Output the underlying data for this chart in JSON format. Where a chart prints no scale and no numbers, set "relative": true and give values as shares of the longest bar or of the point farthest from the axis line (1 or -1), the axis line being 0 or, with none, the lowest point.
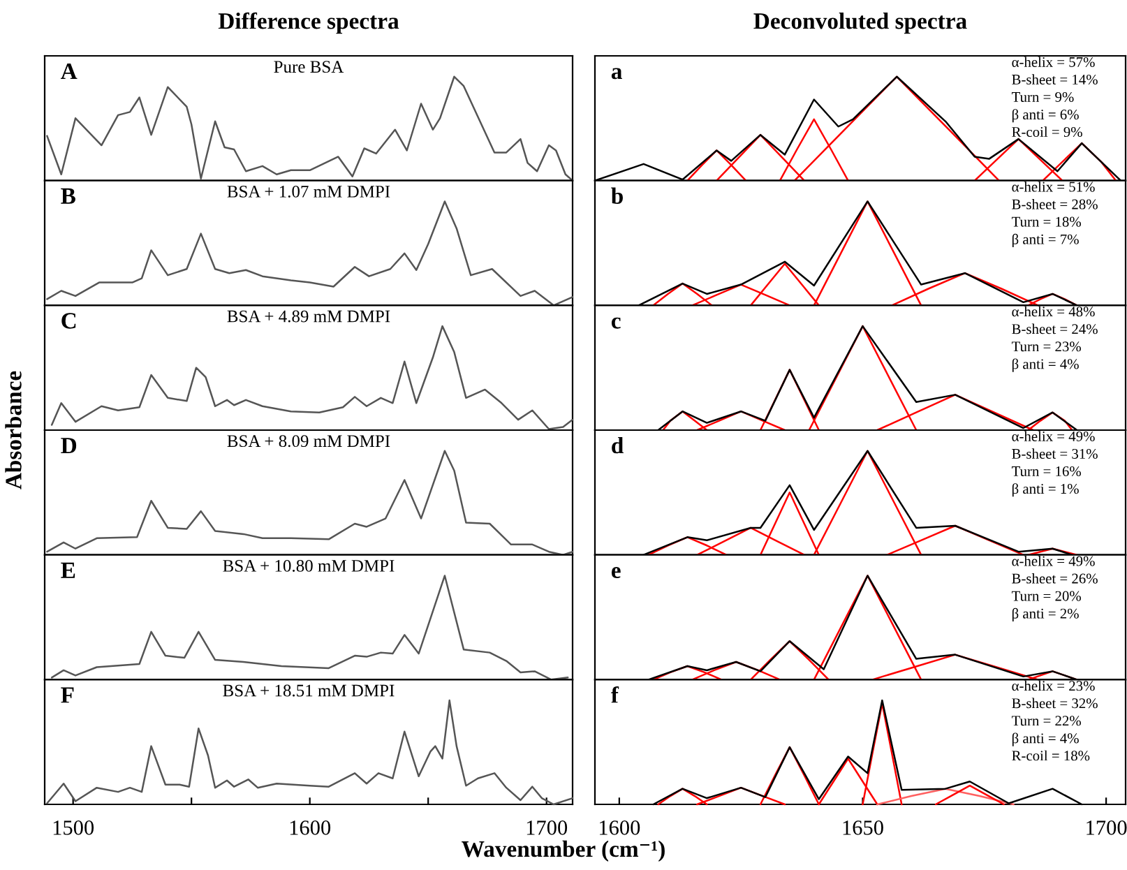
{
  "chart_data": [
    {
      "type": "line",
      "title": "Difference spectra",
      "subtitle": "Pure BSA",
      "annotations": [
        "A"
      ],
      "relative": true,
      "xlim": [
        1488,
        1711
      ],
      "tick_labels": false,
      "series": [
        {
          "color": "#555555",
          "x": [
            1489,
            1495,
            1501,
            1512,
            1519,
            1524,
            1528,
            1533,
            1540,
            1548,
            1550,
            1554,
            1560,
            1564,
            1568,
            1573,
            1580,
            1586,
            1592,
            1600,
            1612,
            1618,
            1623,
            1628,
            1636,
            1641,
            1647,
            1652,
            1655,
            1661,
            1665,
            1678,
            1683,
            1689,
            1692,
            1696,
            1701,
            1704,
            1708,
            1711
          ],
          "values": [
            0.43,
            0.06,
            0.6,
            0.34,
            0.63,
            0.66,
            0.8,
            0.44,
            0.9,
            0.71,
            0.54,
            0.02,
            0.57,
            0.32,
            0.3,
            0.09,
            0.14,
            0.06,
            0.1,
            0.1,
            0.23,
            0.04,
            0.31,
            0.26,
            0.49,
            0.29,
            0.74,
            0.49,
            0.6,
            1.0,
            0.91,
            0.27,
            0.27,
            0.4,
            0.17,
            0.09,
            0.34,
            0.29,
            0.06,
            0
          ]
        }
      ]
    },
    {
      "type": "line",
      "subtitle": "BSA + 1.07 mM DMPI",
      "annotations": [
        "B"
      ],
      "relative": true,
      "xlim": [
        1488,
        1711
      ],
      "tick_labels": false,
      "series": [
        {
          "color": "#555555",
          "x": [
            1489,
            1495,
            1501,
            1511,
            1525,
            1529,
            1533,
            1540,
            1548,
            1554,
            1560,
            1566,
            1573,
            1580,
            1592,
            1600,
            1610,
            1619,
            1625,
            1634,
            1640,
            1645,
            1650,
            1657,
            1662,
            1668,
            1677,
            1689,
            1695,
            1703,
            1711
          ],
          "values": [
            0.06,
            0.14,
            0.09,
            0.22,
            0.22,
            0.26,
            0.53,
            0.29,
            0.35,
            0.69,
            0.35,
            0.31,
            0.34,
            0.28,
            0.24,
            0.22,
            0.18,
            0.37,
            0.28,
            0.35,
            0.5,
            0.34,
            0.59,
            1.0,
            0.74,
            0.29,
            0.35,
            0.09,
            0.14,
            0,
            0.08
          ]
        }
      ]
    },
    {
      "type": "line",
      "subtitle": "BSA + 4.89 mM DMPI",
      "annotations": [
        "C"
      ],
      "relative": true,
      "xlim": [
        1488,
        1711
      ],
      "tick_labels": false,
      "series": [
        {
          "color": "#555555",
          "x": [
            1491,
            1495,
            1501,
            1512,
            1519,
            1528,
            1533,
            1540,
            1548,
            1552,
            1556,
            1560,
            1565,
            1568,
            1573,
            1580,
            1592,
            1604,
            1614,
            1619,
            1624,
            1630,
            1635,
            1640,
            1645,
            1652,
            1656,
            1661,
            1666,
            1674,
            1681,
            1688,
            1694,
            1701,
            1707,
            1711
          ],
          "values": [
            0.05,
            0.26,
            0.08,
            0.23,
            0.19,
            0.22,
            0.53,
            0.31,
            0.28,
            0.6,
            0.51,
            0.23,
            0.29,
            0.24,
            0.29,
            0.23,
            0.18,
            0.17,
            0.22,
            0.32,
            0.23,
            0.31,
            0.26,
            0.66,
            0.26,
            0.7,
            1.0,
            0.75,
            0.31,
            0.39,
            0.26,
            0.1,
            0.19,
            0.01,
            0.03,
            0.1
          ]
        }
      ]
    },
    {
      "type": "line",
      "subtitle": "BSA + 8.09 mM DMPI",
      "ylabel": "Absorbance",
      "annotations": [
        "D"
      ],
      "relative": true,
      "xlim": [
        1488,
        1711
      ],
      "tick_labels": false,
      "series": [
        {
          "color": "#555555",
          "x": [
            1489,
            1496,
            1501,
            1510,
            1527,
            1533,
            1540,
            1548,
            1554,
            1560,
            1572,
            1580,
            1592,
            1608,
            1619,
            1624,
            1632,
            1640,
            1647,
            1657,
            1661,
            1666,
            1676,
            1685,
            1694,
            1701,
            1707,
            1711
          ],
          "values": [
            0.03,
            0.12,
            0.06,
            0.16,
            0.17,
            0.52,
            0.26,
            0.25,
            0.42,
            0.23,
            0.2,
            0.16,
            0.16,
            0.15,
            0.3,
            0.27,
            0.35,
            0.72,
            0.35,
            1.0,
            0.81,
            0.31,
            0.3,
            0.1,
            0.1,
            0.03,
            0,
            0.03
          ]
        }
      ]
    },
    {
      "type": "line",
      "subtitle": "BSA + 10.80 mM DMPI",
      "annotations": [
        "E"
      ],
      "relative": true,
      "xlim": [
        1488,
        1711
      ],
      "tick_labels": false,
      "series": [
        {
          "color": "#555555",
          "x": [
            1491,
            1496,
            1501,
            1510,
            1528,
            1533,
            1539,
            1547,
            1553,
            1560,
            1572,
            1588,
            1608,
            1619,
            1624,
            1630,
            1635,
            1640,
            1646,
            1657,
            1665,
            1676,
            1683,
            1689,
            1695,
            1702,
            1709
          ],
          "values": [
            0.02,
            0.09,
            0.04,
            0.12,
            0.15,
            0.46,
            0.23,
            0.21,
            0.46,
            0.19,
            0.17,
            0.13,
            0.11,
            0.23,
            0.22,
            0.26,
            0.25,
            0.43,
            0.25,
            1.0,
            0.29,
            0.26,
            0.18,
            0.07,
            0.08,
            0,
            0.02
          ]
        }
      ]
    },
    {
      "type": "line",
      "subtitle": "BSA + 18.51 mM DMPI",
      "xlabel": "Wavenumber (cm⁻¹)",
      "annotations": [
        "F"
      ],
      "relative": true,
      "xlim": [
        1488,
        1711
      ],
      "xticks": [
        1500,
        {
          "value": 1550,
          "label": null
        },
        1600,
        {
          "value": 1650,
          "label": null
        },
        1700
      ],
      "tick_labels": "x",
      "series": [
        {
          "color": "#555555",
          "x": [
            1489,
            1496,
            1501,
            1510,
            1519,
            1524,
            1529,
            1533,
            1539,
            1545,
            1549,
            1553,
            1557,
            1560,
            1565,
            1568,
            1574,
            1578,
            1586,
            1600,
            1608,
            1619,
            1624,
            1629,
            1635,
            1640,
            1646,
            1651,
            1653,
            1656,
            1659,
            1662,
            1666,
            1671,
            1678,
            1683,
            1689,
            1694,
            1698,
            1703,
            1711
          ],
          "values": [
            0.01,
            0.2,
            0.03,
            0.16,
            0.12,
            0.16,
            0.12,
            0.56,
            0.19,
            0.19,
            0.17,
            0.73,
            0.47,
            0.16,
            0.23,
            0.17,
            0.24,
            0.16,
            0.2,
            0.18,
            0.17,
            0.3,
            0.2,
            0.3,
            0.25,
            0.7,
            0.27,
            0.51,
            0.56,
            0.44,
            1.0,
            0.56,
            0.18,
            0.25,
            0.3,
            0.16,
            0.04,
            0.17,
            0.06,
            0,
            0.06
          ]
        }
      ]
    },
    {
      "type": "line",
      "title": "Deconvoluted spectra",
      "annotations": [
        "a",
        "α-helix = 57%",
        "B-sheet = 14%",
        "Turn = 9%",
        "β anti = 6%",
        "R-coil = 9%"
      ],
      "relative": true,
      "xlim": [
        1595,
        1704
      ],
      "tick_labels": false,
      "series": [
        {
          "color": "#ff0000",
          "x": [
            1614,
            1617,
            1620,
            1623,
            1626
          ],
          "values": [
            0,
            0.15,
            0.29,
            0.15,
            0
          ]
        },
        {
          "color": "#ff0000",
          "x": [
            1620,
            1624.5,
            1629,
            1633.5,
            1638
          ],
          "values": [
            0,
            0.22,
            0.44,
            0.22,
            0
          ]
        },
        {
          "color": "#ff0000",
          "x": [
            1633,
            1636.5,
            1640,
            1643.5,
            1647
          ],
          "values": [
            0,
            0.3,
            0.59,
            0.3,
            0
          ]
        },
        {
          "color": "#ff0000",
          "x": [
            1636,
            1646.5,
            1657,
            1667.5,
            1678
          ],
          "values": [
            0,
            0.5,
            1.0,
            0.5,
            0
          ]
        },
        {
          "color": "#ff0000",
          "x": [
            1673,
            1677.5,
            1682,
            1686.5,
            1691
          ],
          "values": [
            0,
            0.2,
            0.4,
            0.2,
            0
          ]
        },
        {
          "color": "#ff0000",
          "x": [
            1687,
            1691,
            1695,
            1699,
            1702
          ],
          "values": [
            0,
            0.18,
            0.36,
            0.18,
            0
          ]
        },
        {
          "color": "#000000",
          "x": [
            1595,
            1605,
            1613,
            1620,
            1623,
            1629,
            1634,
            1640,
            1645,
            1648,
            1657,
            1667,
            1673,
            1676,
            1682,
            1690,
            1695,
            1703
          ],
          "values": [
            0,
            0.16,
            0.01,
            0.29,
            0.19,
            0.44,
            0.25,
            0.78,
            0.52,
            0.59,
            1.0,
            0.57,
            0.23,
            0.21,
            0.4,
            0.09,
            0.36,
            0
          ]
        }
      ]
    },
    {
      "type": "line",
      "annotations": [
        "b",
        "α-helix = 51%",
        "B-sheet = 28%",
        "Turn = 18%",
        "β anti = 7%"
      ],
      "relative": true,
      "xlim": [
        1595,
        1704
      ],
      "tick_labels": false,
      "series": [
        {
          "color": "#ff0000",
          "x": [
            1607,
            1610,
            1613,
            1616,
            1619
          ],
          "values": [
            0,
            0.11,
            0.21,
            0.11,
            0
          ]
        },
        {
          "color": "#ff0000",
          "x": [
            1615,
            1620,
            1625,
            1630,
            1635
          ],
          "values": [
            0,
            0.1,
            0.2,
            0.1,
            0
          ]
        },
        {
          "color": "#ff0000",
          "x": [
            1627,
            1630.5,
            1634,
            1637.5,
            1641
          ],
          "values": [
            0,
            0.2,
            0.4,
            0.2,
            0
          ]
        },
        {
          "color": "#ff0000",
          "x": [
            1640,
            1645.5,
            1651,
            1656.5,
            1662
          ],
          "values": [
            0,
            0.5,
            1.0,
            0.5,
            0
          ]
        },
        {
          "color": "#ff0000",
          "x": [
            1656,
            1663.5,
            1671,
            1678.5,
            1686
          ],
          "values": [
            0,
            0.16,
            0.31,
            0.16,
            0
          ]
        },
        {
          "color": "#ff0000",
          "x": [
            1684,
            1686.5,
            1689,
            1691.5,
            1694
          ],
          "values": [
            0,
            0.06,
            0.11,
            0.06,
            0
          ]
        },
        {
          "color": "#000000",
          "x": [
            1604,
            1613,
            1618,
            1625,
            1634,
            1640,
            1651,
            1662,
            1671,
            1683,
            1689,
            1694
          ],
          "values": [
            0,
            0.21,
            0.11,
            0.2,
            0.42,
            0.19,
            1.0,
            0.2,
            0.31,
            0.03,
            0.11,
            0
          ]
        }
      ]
    },
    {
      "type": "line",
      "annotations": [
        "c",
        "α-helix = 48%",
        "B-sheet = 24%",
        "Turn = 23%",
        "β anti = 4%"
      ],
      "relative": true,
      "xlim": [
        1595,
        1704
      ],
      "tick_labels": false,
      "series": [
        {
          "color": "#ff0000",
          "x": [
            1609,
            1610.5,
            1613,
            1615.5,
            1618
          ],
          "values": [
            0,
            0.09,
            0.18,
            0.09,
            0
          ]
        },
        {
          "color": "#ff0000",
          "x": [
            1616,
            1620.5,
            1625,
            1629.5,
            1634
          ],
          "values": [
            0,
            0.09,
            0.18,
            0.09,
            0
          ]
        },
        {
          "color": "#ff0000",
          "x": [
            1629,
            1632,
            1635,
            1638,
            1641
          ],
          "values": [
            0,
            0.29,
            0.58,
            0.29,
            0
          ]
        },
        {
          "color": "#ff0000",
          "x": [
            1639,
            1644.5,
            1650,
            1655.5,
            1661
          ],
          "values": [
            0,
            0.5,
            1.0,
            0.5,
            0
          ]
        },
        {
          "color": "#ff0000",
          "x": [
            1653,
            1661,
            1669,
            1677,
            1685
          ],
          "values": [
            0,
            0.17,
            0.34,
            0.17,
            0
          ]
        },
        {
          "color": "#ff0000",
          "x": [
            1684,
            1686.5,
            1689,
            1691.5,
            1693
          ],
          "values": [
            0,
            0.09,
            0.17,
            0.09,
            0
          ]
        },
        {
          "color": "#000000",
          "x": [
            1608,
            1613,
            1618,
            1625,
            1630,
            1635,
            1640,
            1650,
            1661,
            1669,
            1683,
            1689,
            1694
          ],
          "values": [
            0,
            0.18,
            0.07,
            0.18,
            0.09,
            0.58,
            0.12,
            1.0,
            0.27,
            0.34,
            0.02,
            0.17,
            0
          ]
        }
      ]
    },
    {
      "type": "line",
      "annotations": [
        "d",
        "α-helix = 49%",
        "B-sheet = 31%",
        "Turn = 16%",
        "β anti = 1%"
      ],
      "relative": true,
      "xlim": [
        1595,
        1704
      ],
      "tick_labels": false,
      "series": [
        {
          "color": "#ff0000",
          "x": [
            1606,
            1610,
            1614,
            1618,
            1622
          ],
          "values": [
            0,
            0.09,
            0.17,
            0.09,
            0
          ]
        },
        {
          "color": "#ff0000",
          "x": [
            1616,
            1621.5,
            1627,
            1632.5,
            1638
          ],
          "values": [
            0,
            0.13,
            0.26,
            0.13,
            0
          ]
        },
        {
          "color": "#ff0000",
          "x": [
            1629,
            1632,
            1635,
            1638,
            1641
          ],
          "values": [
            0,
            0.3,
            0.6,
            0.3,
            0
          ]
        },
        {
          "color": "#ff0000",
          "x": [
            1640,
            1645.5,
            1651,
            1656.5,
            1662
          ],
          "values": [
            0,
            0.5,
            1.0,
            0.5,
            0
          ]
        },
        {
          "color": "#ff0000",
          "x": [
            1655,
            1662,
            1669,
            1676,
            1683
          ],
          "values": [
            0,
            0.14,
            0.28,
            0.14,
            0
          ]
        },
        {
          "color": "#ff0000",
          "x": [
            1684,
            1686.5,
            1689,
            1691.5,
            1694
          ],
          "values": [
            0,
            0.03,
            0.06,
            0.03,
            0
          ]
        },
        {
          "color": "#000000",
          "x": [
            1605,
            1614,
            1618,
            1627,
            1629,
            1635,
            1640,
            1651,
            1661,
            1669,
            1682,
            1689,
            1693
          ],
          "values": [
            0,
            0.17,
            0.14,
            0.26,
            0.26,
            0.67,
            0.24,
            1.0,
            0.26,
            0.28,
            0.03,
            0.06,
            0
          ]
        }
      ]
    },
    {
      "type": "line",
      "annotations": [
        "e",
        "α-helix = 49%",
        "B-sheet = 26%",
        "Turn = 20%",
        "β anti = 2%"
      ],
      "relative": true,
      "xlim": [
        1595,
        1704
      ],
      "tick_labels": false,
      "series": [
        {
          "color": "#ff0000",
          "x": [
            1607,
            1610.5,
            1614,
            1617.5,
            1621
          ],
          "values": [
            0,
            0.07,
            0.13,
            0.07,
            0
          ]
        },
        {
          "color": "#ff0000",
          "x": [
            1615,
            1619.5,
            1624,
            1628.5,
            1633
          ],
          "values": [
            0,
            0.09,
            0.17,
            0.09,
            0
          ]
        },
        {
          "color": "#ff0000",
          "x": [
            1627,
            1631,
            1635,
            1639,
            1643
          ],
          "values": [
            0,
            0.19,
            0.37,
            0.19,
            0
          ]
        },
        {
          "color": "#ff0000",
          "x": [
            1640,
            1645.5,
            1651,
            1656.5,
            1662
          ],
          "values": [
            0,
            0.5,
            1.0,
            0.5,
            0
          ]
        },
        {
          "color": "#ff0000",
          "x": [
            1652,
            1660.5,
            1669,
            1677.5,
            1686
          ],
          "values": [
            0,
            0.12,
            0.24,
            0.12,
            0
          ]
        },
        {
          "color": "#ff0000",
          "x": [
            1684,
            1686.5,
            1689,
            1691.5,
            1694
          ],
          "values": [
            0,
            0.04,
            0.08,
            0.04,
            0
          ]
        },
        {
          "color": "#000000",
          "x": [
            1606,
            1614,
            1618,
            1624,
            1629,
            1635,
            1642,
            1651,
            1661,
            1669,
            1683,
            1689,
            1694
          ],
          "values": [
            0,
            0.13,
            0.09,
            0.17,
            0.08,
            0.37,
            0.1,
            1.0,
            0.2,
            0.24,
            0.03,
            0.08,
            0
          ]
        }
      ]
    },
    {
      "type": "line",
      "annotations": [
        "f",
        "α-helix = 23%",
        "B-sheet = 32%",
        "Turn = 22%",
        "β anti = 4%",
        "R-coil = 18%"
      ],
      "relative": true,
      "xlim": [
        1595,
        1704
      ],
      "xticks": [
        1600,
        1650,
        1700
      ],
      "tick_labels": "x",
      "series": [
        {
          "color": "#ff0000",
          "x": [
            1608,
            1610.5,
            1613,
            1615.5,
            1618
          ],
          "values": [
            0,
            0.08,
            0.15,
            0.08,
            0
          ]
        },
        {
          "color": "#ff0000",
          "x": [
            1616,
            1620.5,
            1625,
            1629.5,
            1634
          ],
          "values": [
            0,
            0.08,
            0.16,
            0.08,
            0
          ]
        },
        {
          "color": "#ff0000",
          "x": [
            1629,
            1632,
            1635,
            1638,
            1641
          ],
          "values": [
            0,
            0.28,
            0.55,
            0.28,
            0
          ]
        },
        {
          "color": "#ff0000",
          "x": [
            1641,
            1644,
            1647,
            1650,
            1653
          ],
          "values": [
            0,
            0.22,
            0.44,
            0.22,
            0
          ]
        },
        {
          "color": "#ff0000",
          "x": [
            1650,
            1652,
            1654,
            1656,
            1658
          ],
          "values": [
            0,
            0.49,
            0.97,
            0.49,
            0
          ]
        },
        {
          "color": "#ff6060",
          "x": [
            1653,
            1660,
            1667,
            1674,
            1681
          ],
          "values": [
            0,
            0.08,
            0.15,
            0.08,
            0
          ]
        },
        {
          "color": "#ff0000",
          "x": [
            1665,
            1668.5,
            1672,
            1675.5,
            1679
          ],
          "values": [
            0,
            0.09,
            0.18,
            0.09,
            0
          ]
        },
        {
          "color": "#000000",
          "x": [
            1607,
            1613,
            1618,
            1625,
            1630,
            1635,
            1641,
            1647,
            1651,
            1654,
            1658,
            1667,
            1672,
            1680,
            1689,
            1695
          ],
          "values": [
            0,
            0.15,
            0.06,
            0.16,
            0.07,
            0.55,
            0.05,
            0.46,
            0.3,
            1.0,
            0.14,
            0.15,
            0.22,
            0.01,
            0.15,
            0
          ]
        }
      ]
    }
  ]
}
